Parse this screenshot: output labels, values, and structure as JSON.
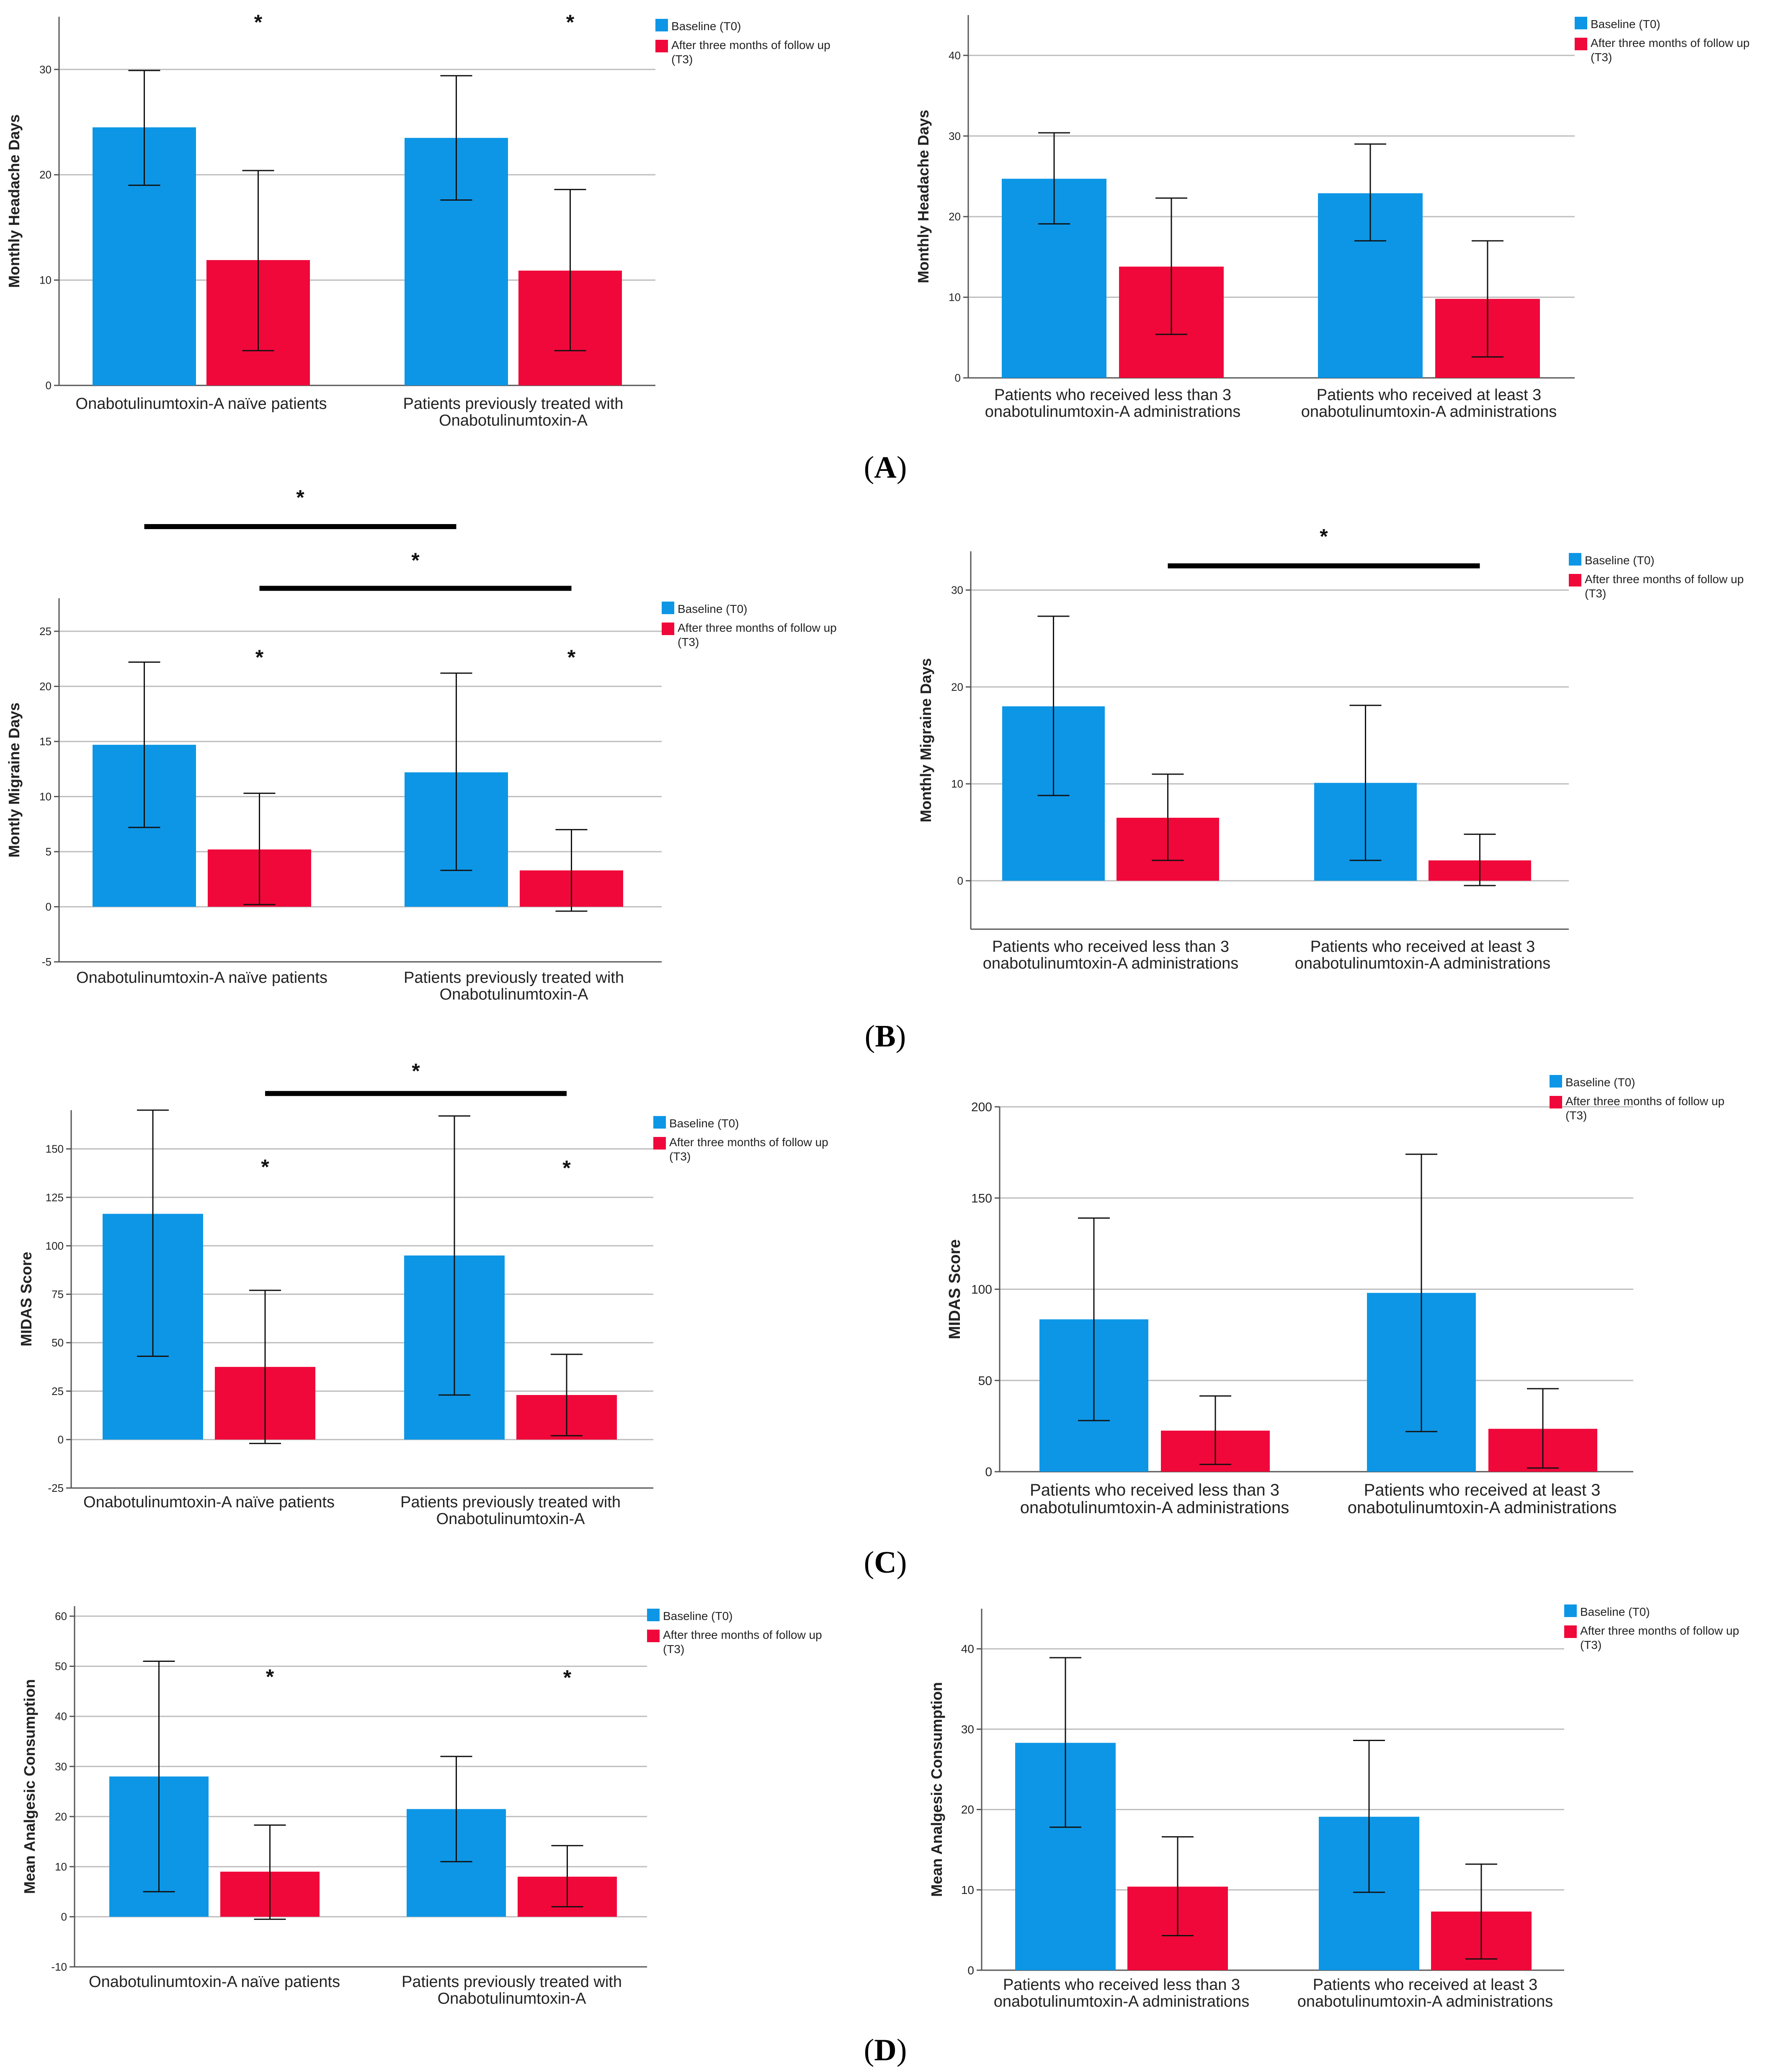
{
  "figure": {
    "legend": {
      "baseline": "Baseline (T0)",
      "after_line1": "After three months of follow up",
      "after_line2": "(T3)"
    },
    "colors": {
      "baseline": "#0D96E6",
      "after": "#F0083A",
      "axis": "#555555",
      "grid": "#bdbdbd",
      "text": "#222222"
    },
    "panels": [
      {
        "label_open": "(",
        "label": "A",
        "label_close": ")"
      },
      {
        "label_open": "(",
        "label": "B",
        "label_close": ")"
      },
      {
        "label_open": "(",
        "label": "C",
        "label_close": ")"
      },
      {
        "label_open": "(",
        "label": "D",
        "label_close": ")"
      }
    ]
  },
  "chart_data": [
    {
      "type": "bar",
      "panel": "A",
      "side": "left",
      "ylabel": "Monthly Headache Days",
      "ylim": [
        0,
        35
      ],
      "yticks": [
        0,
        10,
        20,
        30
      ],
      "grid": true,
      "categories": [
        [
          "Onabotulinumtoxin-A naïve patients"
        ],
        [
          "Patients previously treated with",
          "Onabotulinumtoxin-A"
        ]
      ],
      "series": [
        {
          "name": "Baseline (T0)",
          "values": [
            24.5,
            23.5
          ],
          "err_low": [
            19.0,
            17.6
          ],
          "err_high": [
            29.9,
            29.4
          ]
        },
        {
          "name": "After three months of follow up (T3)",
          "values": [
            11.9,
            10.9
          ],
          "err_low": [
            3.3,
            3.3
          ],
          "err_high": [
            20.4,
            18.6
          ]
        }
      ],
      "star_markers": [
        {
          "cat": 0,
          "series": 1,
          "value": 33.8,
          "text": "*"
        },
        {
          "cat": 1,
          "series": 1,
          "value": 33.8,
          "text": "*"
        }
      ],
      "brackets": []
    },
    {
      "type": "bar",
      "panel": "A",
      "side": "right",
      "ylabel": "Monthly Headache Days",
      "ylim": [
        0,
        45
      ],
      "yticks": [
        0,
        10,
        20,
        30,
        40
      ],
      "grid": true,
      "categories": [
        [
          "Patients who received less than 3",
          "onabotulinumtoxin-A administrations"
        ],
        [
          "Patients who received at least 3",
          "onabotulinumtoxin-A administrations"
        ]
      ],
      "series": [
        {
          "name": "Baseline (T0)",
          "values": [
            24.7,
            22.9
          ],
          "err_low": [
            19.1,
            17.0
          ],
          "err_high": [
            30.4,
            29.0
          ]
        },
        {
          "name": "After three months of follow up (T3)",
          "values": [
            13.8,
            9.8
          ],
          "err_low": [
            5.4,
            2.6
          ],
          "err_high": [
            22.3,
            17.0
          ]
        }
      ],
      "star_markers": [],
      "brackets": []
    },
    {
      "type": "bar",
      "panel": "B",
      "side": "left",
      "ylabel": "Montly Migraine Days",
      "ylim": [
        -5,
        28
      ],
      "yticks": [
        -5,
        0,
        5,
        10,
        15,
        20,
        25
      ],
      "grid": true,
      "categories": [
        [
          "Onabotulinumtoxin-A naïve patients"
        ],
        [
          "Patients previously treated with",
          "Onabotulinumtoxin-A"
        ]
      ],
      "series": [
        {
          "name": "Baseline (T0)",
          "values": [
            14.7,
            12.2
          ],
          "err_low": [
            7.2,
            3.3
          ],
          "err_high": [
            22.2,
            21.2
          ]
        },
        {
          "name": "After three months of follow up (T3)",
          "values": [
            5.2,
            3.3
          ],
          "err_low": [
            0.2,
            -0.4
          ],
          "err_high": [
            10.3,
            7.0
          ]
        }
      ],
      "star_markers": [
        {
          "cat": 0,
          "series": 1,
          "value": 22.0,
          "text": "*"
        },
        {
          "cat": 1,
          "series": 1,
          "value": 22.0,
          "text": "*"
        }
      ],
      "brackets": [
        {
          "from_cat": 0,
          "from_series": 0,
          "to_cat": 1,
          "to_series": 0,
          "value": 34.5,
          "star_value": 36.5,
          "text": "*"
        },
        {
          "from_cat": 0,
          "from_series": 1,
          "to_cat": 1,
          "to_series": 1,
          "value": 28.9,
          "star_value": 30.8,
          "text": "*"
        }
      ]
    },
    {
      "type": "bar",
      "panel": "B",
      "side": "right",
      "ylabel": "Monthly Migraine Days",
      "ylim": [
        -5,
        34
      ],
      "yticks": [
        0,
        10,
        20,
        30
      ],
      "grid": true,
      "categories": [
        [
          "Patients who received less than 3",
          "onabotulinumtoxin-A administrations"
        ],
        [
          "Patients who received at least 3",
          "onabotulinumtoxin-A administrations"
        ]
      ],
      "series": [
        {
          "name": "Baseline (T0)",
          "values": [
            18.0,
            10.1
          ],
          "err_low": [
            8.8,
            2.1
          ],
          "err_high": [
            27.3,
            18.1
          ]
        },
        {
          "name": "After three months of follow up (T3)",
          "values": [
            6.5,
            2.1
          ],
          "err_low": [
            2.1,
            -0.5
          ],
          "err_high": [
            11.0,
            4.8
          ]
        }
      ],
      "star_markers": [],
      "brackets": [
        {
          "from_cat": 0,
          "from_series": 1,
          "to_cat": 1,
          "to_series": 1,
          "value": 32.5,
          "star_value": 34.8,
          "text": "*"
        }
      ]
    },
    {
      "type": "bar",
      "panel": "C",
      "side": "left",
      "ylabel": "MIDAS Score",
      "ylim": [
        -25,
        170
      ],
      "yticks": [
        -25,
        0,
        25,
        50,
        75,
        100,
        125,
        150
      ],
      "grid": true,
      "categories": [
        [
          "Onabotulinumtoxin-A naïve patients"
        ],
        [
          "Patients previously treated with",
          "Onabotulinumtoxin-A"
        ]
      ],
      "series": [
        {
          "name": "Baseline (T0)",
          "values": [
            116.5,
            95.0
          ],
          "err_low": [
            43.0,
            23.0
          ],
          "err_high": [
            170.0,
            167.0
          ]
        },
        {
          "name": "After three months of follow up (T3)",
          "values": [
            37.5,
            23.0
          ],
          "err_low": [
            -2.0,
            2.0
          ],
          "err_high": [
            77.0,
            44.0
          ]
        }
      ],
      "star_markers": [
        {
          "cat": 0,
          "series": 1,
          "value": 137.0,
          "text": "*"
        },
        {
          "cat": 1,
          "series": 1,
          "value": 136.5,
          "text": "*"
        }
      ],
      "brackets": [
        {
          "from_cat": 0,
          "from_series": 1,
          "to_cat": 1,
          "to_series": 1,
          "value": 178.6,
          "star_value": 186.5,
          "text": "*"
        }
      ]
    },
    {
      "type": "bar",
      "panel": "C",
      "side": "right",
      "ylabel": "MIDAS Score",
      "ylim": [
        0,
        200
      ],
      "yticks": [
        0,
        50,
        100,
        150,
        200
      ],
      "grid": true,
      "categories": [
        [
          "Patients who received less than 3",
          "onabotulinumtoxin-A administrations"
        ],
        [
          "Patients who received at least 3",
          "onabotulinumtoxin-A administrations"
        ]
      ],
      "series": [
        {
          "name": "Baseline (T0)",
          "values": [
            83.5,
            98.0
          ],
          "err_low": [
            28.0,
            22.0
          ],
          "err_high": [
            139.0,
            174.0
          ]
        },
        {
          "name": "After three months of follow up (T3)",
          "values": [
            22.5,
            23.5
          ],
          "err_low": [
            4.0,
            2.0
          ],
          "err_high": [
            41.5,
            45.5
          ]
        }
      ],
      "star_markers": [],
      "brackets": []
    },
    {
      "type": "bar",
      "panel": "D",
      "side": "left",
      "ylabel": "Mean Analgesic Consumption",
      "ylim": [
        -10,
        62
      ],
      "yticks": [
        -10,
        0,
        10,
        20,
        30,
        40,
        50,
        60
      ],
      "grid": true,
      "categories": [
        [
          "Onabotulinumtoxin-A naïve patients"
        ],
        [
          "Patients previously treated with",
          "Onabotulinumtoxin-A"
        ]
      ],
      "series": [
        {
          "name": "Baseline (T0)",
          "values": [
            28.0,
            21.5
          ],
          "err_low": [
            5.0,
            11.0
          ],
          "err_high": [
            51.0,
            32.0
          ]
        },
        {
          "name": "After three months of follow up (T3)",
          "values": [
            9.0,
            8.0
          ],
          "err_low": [
            -0.5,
            2.0
          ],
          "err_high": [
            18.3,
            14.2
          ]
        }
      ],
      "star_markers": [
        {
          "cat": 0,
          "series": 1,
          "value": 46.5,
          "text": "*"
        },
        {
          "cat": 1,
          "series": 1,
          "value": 46.3,
          "text": "*"
        }
      ],
      "brackets": []
    },
    {
      "type": "bar",
      "panel": "D",
      "side": "right",
      "ylabel": "Mean Analgesic Consumption",
      "ylim": [
        0,
        45
      ],
      "yticks": [
        0,
        10,
        20,
        30,
        40
      ],
      "grid": true,
      "categories": [
        [
          "Patients who received less than 3",
          "onabotulinumtoxin-A administrations"
        ],
        [
          "Patients who received at least 3",
          "onabotulinumtoxin-A administrations"
        ]
      ],
      "series": [
        {
          "name": "Baseline (T0)",
          "values": [
            28.3,
            19.1
          ],
          "err_low": [
            17.8,
            9.7
          ],
          "err_high": [
            38.9,
            28.6
          ]
        },
        {
          "name": "After three months of follow up (T3)",
          "values": [
            10.4,
            7.3
          ],
          "err_low": [
            4.3,
            1.4
          ],
          "err_high": [
            16.6,
            13.2
          ]
        }
      ],
      "star_markers": [],
      "brackets": []
    }
  ]
}
